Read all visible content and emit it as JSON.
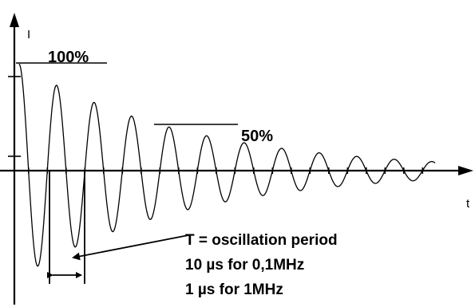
{
  "diagram": {
    "y_axis_label": "I",
    "x_axis_label": "t",
    "level_100_label": "100%",
    "level_50_label": "50%",
    "annotation": {
      "line1": "T = oscillation period",
      "line2": "10 µs for 0,1MHz",
      "line3": "1 µs for 1MHz"
    }
  },
  "chart_data": {
    "type": "line",
    "title": "",
    "xlabel": "t",
    "ylabel": "I",
    "description_levels": [
      "100%",
      "50%"
    ]
  }
}
